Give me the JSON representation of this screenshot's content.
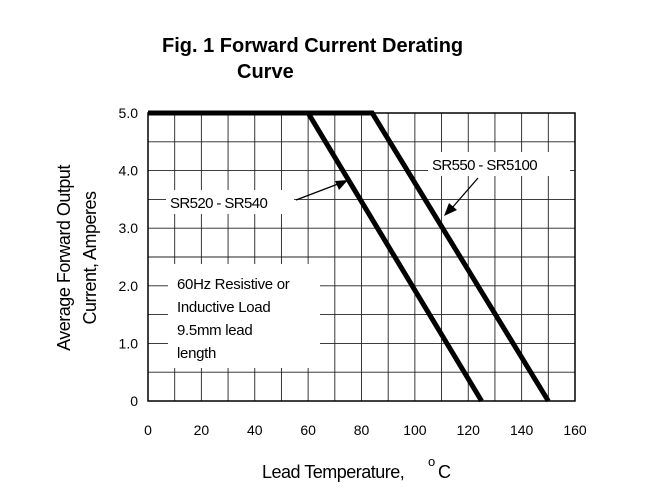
{
  "figure": {
    "title_line1": "Fig. 1  Forward Current   Derating",
    "title_line2": "Curve"
  },
  "chart_data": {
    "type": "line",
    "xlabel": "Lead Temperature,",
    "xlabel_unit": "C",
    "xlabel_degree": "o",
    "ylabel_line1": "Average Forward Output",
    "ylabel_line2": "Current, Amperes",
    "xlim": [
      0,
      160
    ],
    "ylim": [
      0,
      5
    ],
    "xticks": [
      0,
      20,
      40,
      60,
      80,
      100,
      120,
      140,
      160
    ],
    "xtick_labels": [
      "0",
      "20",
      "40",
      "60",
      "80",
      "100",
      "120",
      "140",
      "160"
    ],
    "yticks": [
      0,
      1,
      2,
      3,
      4,
      5
    ],
    "ytick_labels": [
      "0",
      "1.0",
      "2.0",
      "3.0",
      "4.0",
      "5.0"
    ],
    "grid": true,
    "series": [
      {
        "name": "SR520 - SR540",
        "x": [
          0,
          60,
          125
        ],
        "y": [
          5.0,
          5.0,
          0
        ]
      },
      {
        "name": "SR550 - SR5100",
        "x": [
          0,
          84,
          150
        ],
        "y": [
          5.0,
          5.0,
          0
        ]
      }
    ],
    "annotations": {
      "note_lines": [
        "60Hz Resistive or",
        "Inductive Load",
        "9.5mm lead",
        "length"
      ]
    }
  }
}
